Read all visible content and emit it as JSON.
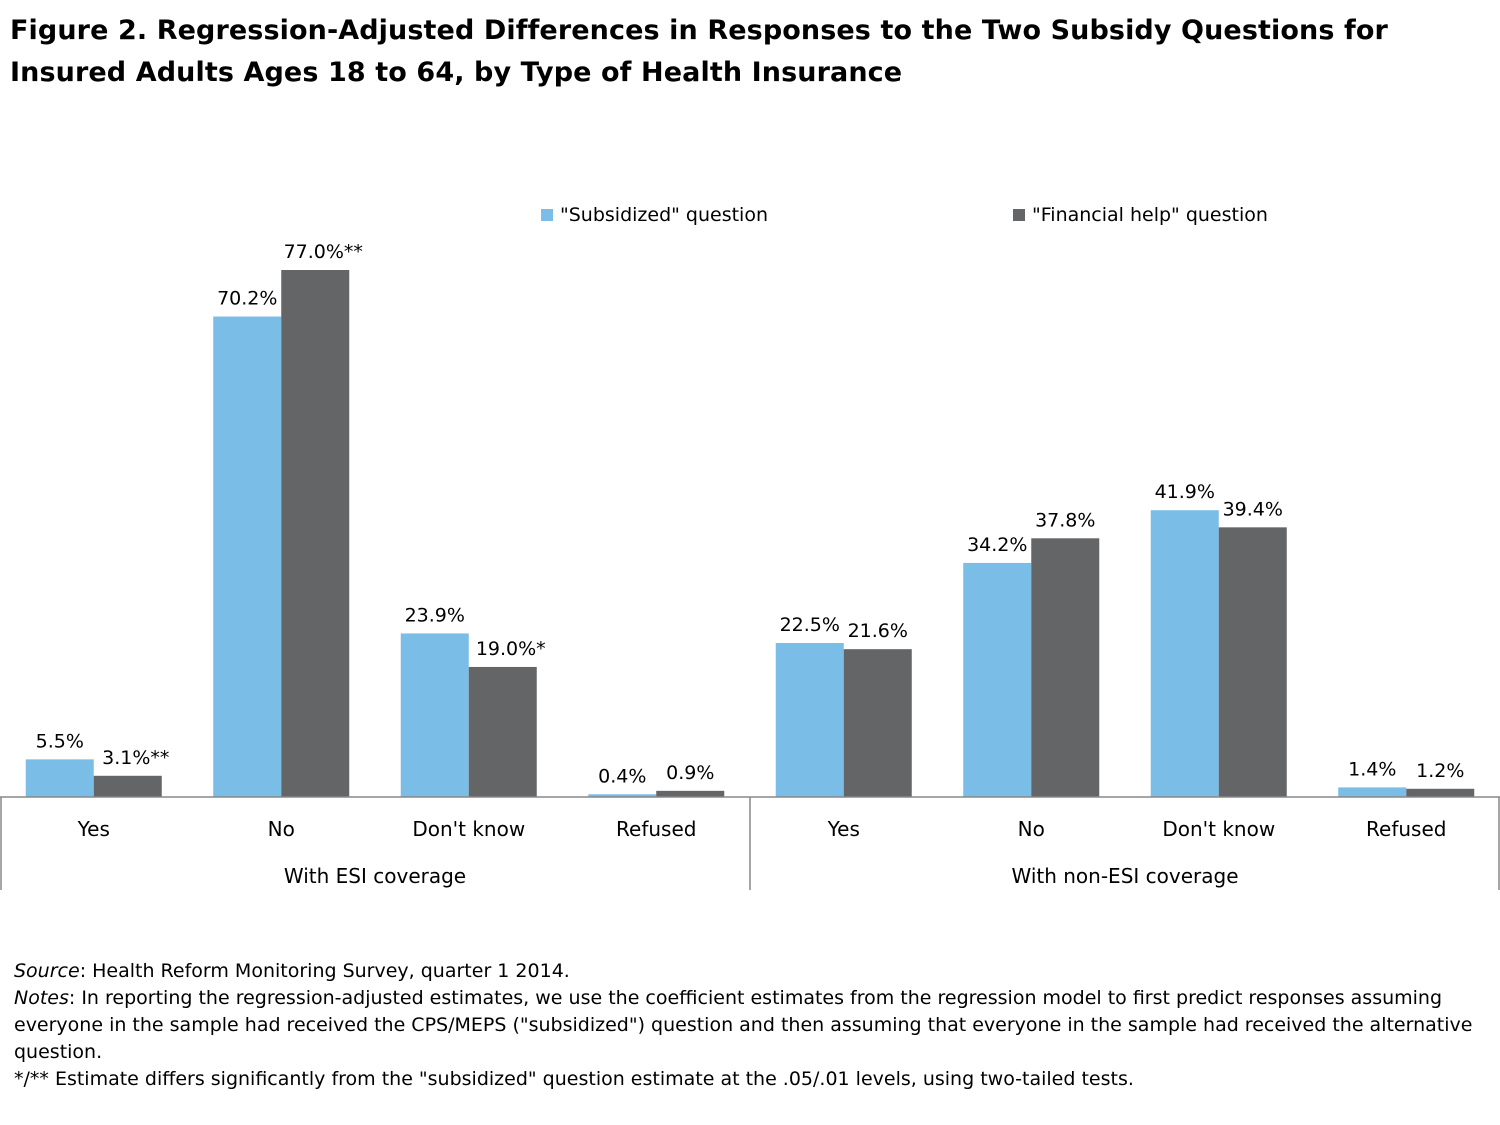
{
  "title": {
    "line1": "Figure 2. Regression-Adjusted Differences in Responses to the Two Subsidy Questions for",
    "line2": "Insured Adults Ages 18 to 64, by Type of Health Insurance"
  },
  "chart_data": {
    "type": "bar",
    "ylim": [
      0,
      80
    ],
    "grid": false,
    "legend_position": "top",
    "groups": [
      {
        "label": "With ESI coverage",
        "categories": [
          "Yes",
          "No",
          "Don't know",
          "Refused"
        ]
      },
      {
        "label": "With non-ESI coverage",
        "categories": [
          "Yes",
          "No",
          "Don't know",
          "Refused"
        ]
      }
    ],
    "series": [
      {
        "name": "\"Subsidized\" question",
        "color": "#7abde6",
        "values": [
          5.5,
          70.2,
          23.9,
          0.4,
          22.5,
          34.2,
          41.9,
          1.4
        ],
        "labels": [
          "5.5%",
          "70.2%",
          "23.9%",
          "0.4%",
          "22.5%",
          "34.2%",
          "41.9%",
          "1.4%"
        ]
      },
      {
        "name": "\"Financial help\" question",
        "color": "#646567",
        "values": [
          3.1,
          77.0,
          19.0,
          0.9,
          21.6,
          37.8,
          39.4,
          1.2
        ],
        "labels": [
          "3.1%**",
          "77.0%**",
          "19.0%*",
          "0.9%",
          "21.6%",
          "37.8%",
          "39.4%",
          "1.2%"
        ]
      }
    ]
  },
  "footer": {
    "source_label": "Source",
    "source_text": ": Health Reform Monitoring Survey, quarter 1 2014.",
    "notes_label": "Notes",
    "notes_text": ": In reporting the regression-adjusted estimates, we use the coefficient estimates from the regression model to first predict responses assuming everyone in the sample had received the CPS/MEPS (\"subsidized\") question and then assuming that everyone in the sample had received the alternative question.",
    "significance_text": "*/** Estimate differs significantly from the \"subsidized\" question estimate at the .05/.01 levels, using two-tailed tests."
  }
}
